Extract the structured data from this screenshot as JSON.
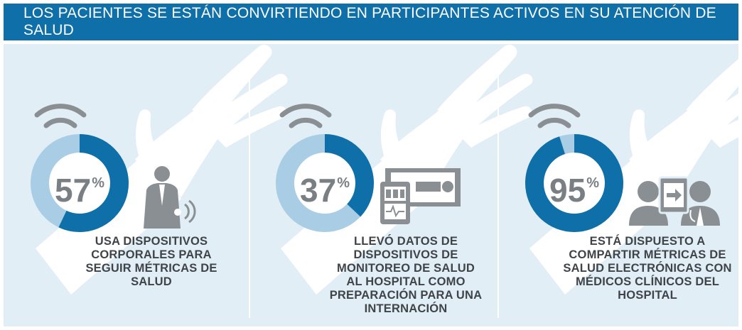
{
  "header": {
    "title": "LOS PACIENTES SE ESTÁN CONVIRTIENDO EN PARTICIPANTES ACTIVOS EN SU ATENCIÓN DE SALUD"
  },
  "colors": {
    "banner": "#0f6fa8",
    "panel_bg": "#e2eef6",
    "ring_dark": "#0f6fa8",
    "ring_light": "#a9cde4",
    "icon_gray": "#8a8f93",
    "hand": "#ffffff"
  },
  "stats": [
    {
      "value": 57,
      "value_label": "57",
      "unit": "%",
      "lines": [
        "USA DISPOSITIVOS",
        "CORPORALES PARA",
        "SEGUIR MÉTRICAS DE",
        "SALUD"
      ],
      "icon": "person-wearable-icon"
    },
    {
      "value": 37,
      "value_label": "37",
      "unit": "%",
      "lines": [
        "LLEVÓ DATOS DE",
        "DISPOSITIVOS DE",
        "MONITOREO DE SALUD",
        "AL HOSPITAL COMO",
        "PREPARACIÓN PARA UNA",
        "INTERNACIÓN"
      ],
      "icon": "device-hospital-bed-icon"
    },
    {
      "value": 95,
      "value_label": "95",
      "unit": "%",
      "lines": [
        "ESTÁ DISPUESTO A",
        "COMPARTIR MÉTRICAS DE",
        "SALUD ELECTRÓNICAS CON",
        "MÉDICOS CLÍNICOS DEL",
        "HOSPITAL"
      ],
      "icon": "patient-doctor-share-icon"
    }
  ]
}
